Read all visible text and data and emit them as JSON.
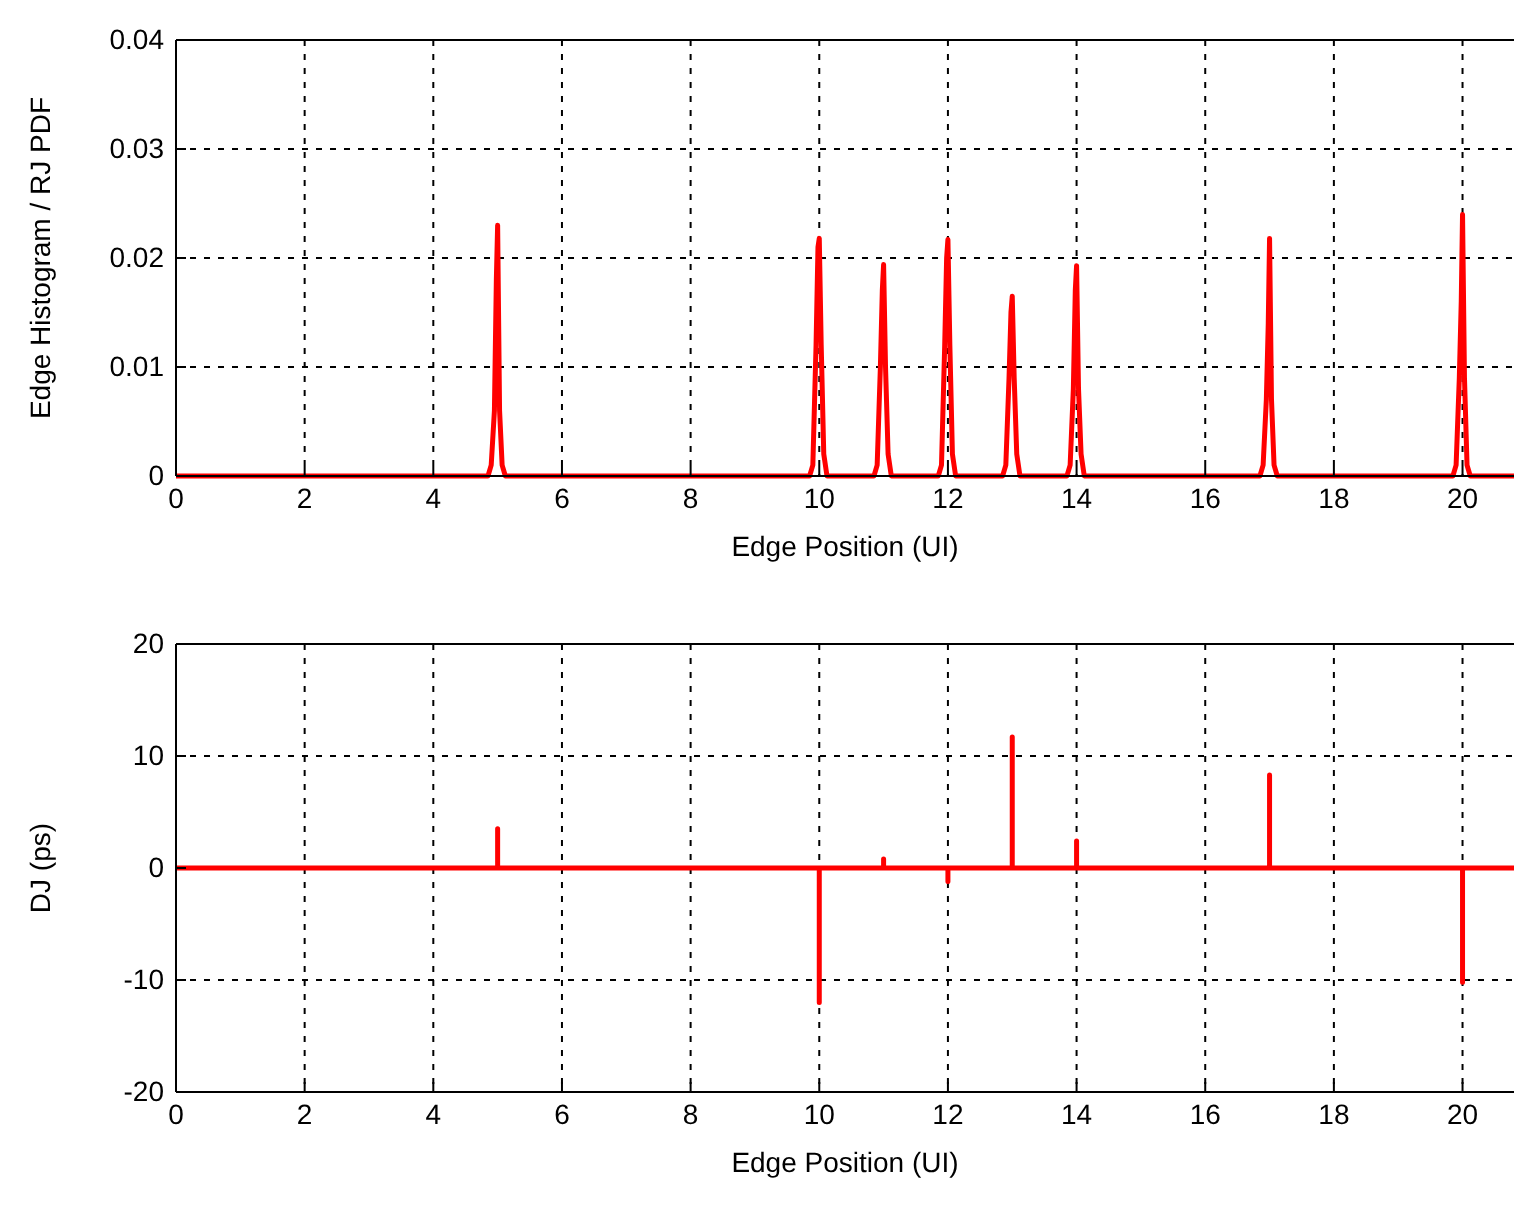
{
  "chart_data": [
    {
      "type": "line",
      "xlabel": "Edge Position (UI)",
      "ylabel": "Edge Histogram / RJ PDF",
      "xlim": [
        0,
        20.8
      ],
      "xticks": [
        0,
        2,
        4,
        6,
        8,
        10,
        12,
        14,
        16,
        18,
        20
      ],
      "ylim": [
        0,
        0.04
      ],
      "yticks": [
        0,
        0.01,
        0.02,
        0.03,
        0.04
      ],
      "grid": true,
      "line_style": "solid",
      "series": [
        {
          "color": "#ff0000",
          "x": [
            0,
            4.85,
            4.9,
            4.95,
            4.98,
            5,
            5.03,
            5.07,
            5.12,
            9.85,
            9.9,
            9.95,
            9.98,
            10,
            10.03,
            10.07,
            10.12,
            10.85,
            10.9,
            10.95,
            10.98,
            11,
            11.03,
            11.07,
            11.12,
            11.85,
            11.9,
            11.95,
            11.98,
            12,
            12.03,
            12.07,
            12.12,
            12.85,
            12.9,
            12.95,
            12.98,
            13,
            13.03,
            13.07,
            13.12,
            13.85,
            13.9,
            13.95,
            13.98,
            14,
            14.03,
            14.07,
            14.12,
            16.85,
            16.9,
            16.95,
            16.98,
            17,
            17.03,
            17.07,
            17.12,
            19.85,
            19.9,
            19.95,
            19.98,
            20,
            20.03,
            20.07,
            20.12,
            20.8
          ],
          "values": [
            0,
            0,
            0.001,
            0.006,
            0.018,
            0.023,
            0.006,
            0.001,
            0,
            0,
            0.001,
            0.012,
            0.021,
            0.0218,
            0.012,
            0.002,
            0,
            0,
            0.001,
            0.01,
            0.017,
            0.0194,
            0.01,
            0.002,
            0,
            0,
            0.001,
            0.012,
            0.02,
            0.0217,
            0.012,
            0.002,
            0,
            0,
            0.001,
            0.009,
            0.015,
            0.0165,
            0.009,
            0.002,
            0,
            0,
            0.001,
            0.008,
            0.017,
            0.0193,
            0.008,
            0.002,
            0,
            0,
            0.001,
            0.007,
            0.014,
            0.0218,
            0.007,
            0.001,
            0,
            0,
            0.001,
            0.009,
            0.016,
            0.024,
            0.009,
            0.001,
            0,
            0
          ]
        }
      ]
    },
    {
      "type": "line",
      "xlabel": "Edge Position (UI)",
      "ylabel": "DJ (ps)",
      "xlim": [
        0,
        20.8
      ],
      "xticks": [
        0,
        2,
        4,
        6,
        8,
        10,
        12,
        14,
        16,
        18,
        20
      ],
      "ylim": [
        -20,
        20
      ],
      "yticks": [
        -20,
        -10,
        0,
        10,
        20
      ],
      "grid": true,
      "line_style": "solid",
      "series": [
        {
          "color": "#ff0000",
          "x": [
            0,
            5,
            5,
            5,
            10,
            10,
            10,
            11,
            11,
            11,
            12,
            12,
            12,
            13,
            13,
            13,
            14,
            14,
            14,
            17,
            17,
            17,
            20,
            20,
            20,
            20.8
          ],
          "values": [
            0,
            0,
            3.5,
            0,
            0,
            -12,
            0,
            0,
            0.8,
            0,
            0,
            -1.2,
            0,
            0,
            11.7,
            0,
            0,
            2.4,
            0,
            0,
            8.3,
            0,
            0,
            -10.2,
            0,
            0
          ]
        }
      ]
    }
  ]
}
